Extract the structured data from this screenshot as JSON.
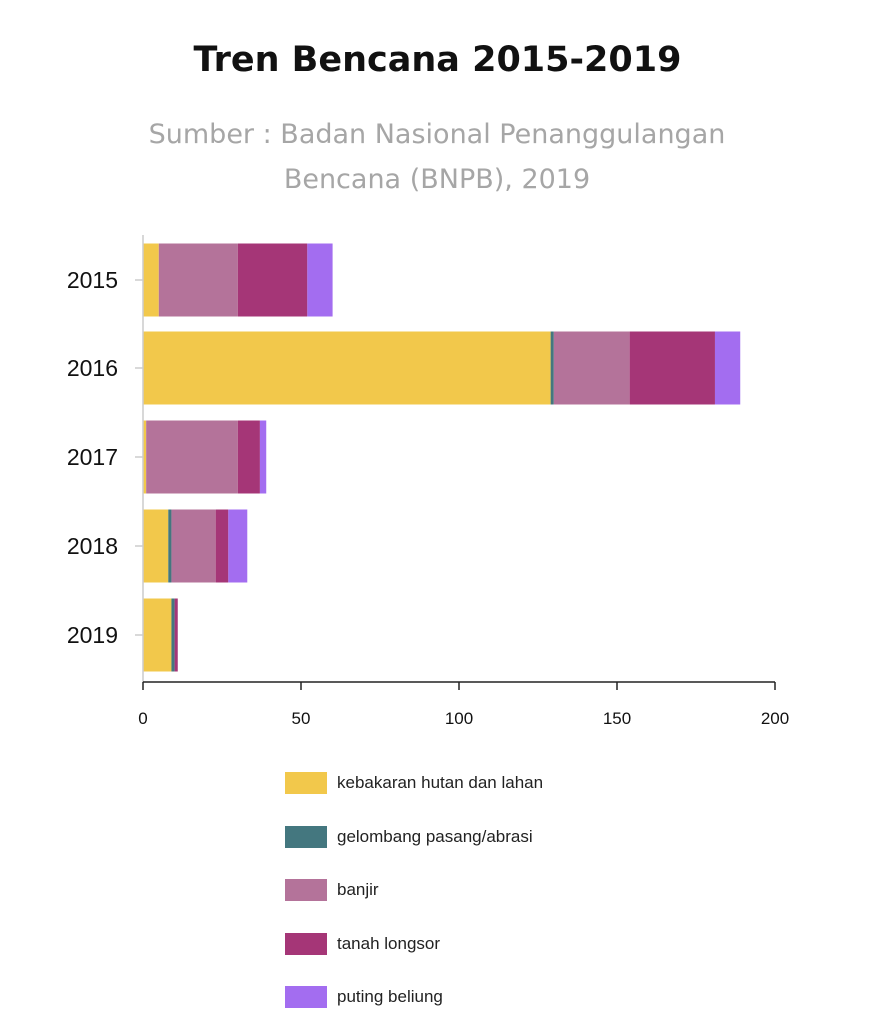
{
  "title": "Tren Bencana 2015-2019",
  "subtitle": "Sumber : Badan Nasional Penanggulangan Bencana (BNPB), 2019",
  "chart_data": {
    "type": "bar",
    "orientation": "horizontal",
    "stacked": true,
    "categories": [
      "2015",
      "2016",
      "2017",
      "2018",
      "2019"
    ],
    "series": [
      {
        "name": "kebakaran hutan dan lahan",
        "color": "#f2c84b",
        "values": [
          5,
          129,
          1,
          8,
          9
        ]
      },
      {
        "name": "gelombang pasang/abrasi",
        "color": "#44777f",
        "values": [
          0,
          1,
          0,
          1,
          1
        ]
      },
      {
        "name": "banjir",
        "color": "#b4739a",
        "values": [
          25,
          24,
          29,
          14,
          0
        ]
      },
      {
        "name": "tanah longsor",
        "color": "#a53677",
        "values": [
          22,
          27,
          7,
          4,
          1
        ]
      },
      {
        "name": "puting beliung",
        "color": "#a36df0",
        "values": [
          8,
          8,
          2,
          6,
          0
        ]
      }
    ],
    "xlim": [
      0,
      200
    ],
    "xticks": [
      "0",
      "50",
      "100",
      "150",
      "200"
    ],
    "grid": false,
    "legend_position": "bottom"
  }
}
